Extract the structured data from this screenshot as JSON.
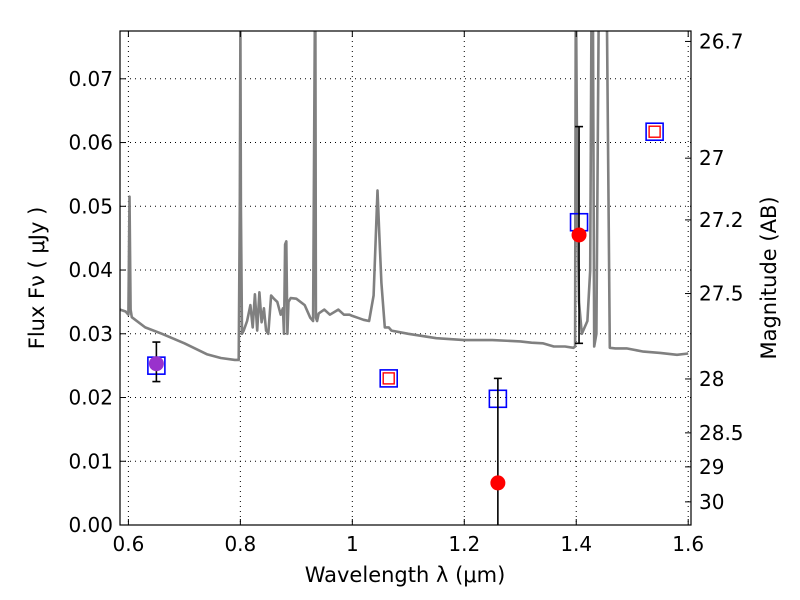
{
  "chart_data": {
    "type": "scatter",
    "title": "",
    "xlabel": "Wavelength  λ (μm)",
    "ylabel": "Flux  Fν  ( μJy )",
    "y2label": "Magnitude (AB)",
    "xlim": [
      0.585,
      1.605
    ],
    "ylim": [
      0.0,
      0.0775
    ],
    "grid": true,
    "x_ticks": [
      0.6,
      0.8,
      1.0,
      1.2,
      1.4,
      1.6
    ],
    "x_tick_labels": [
      "0.6",
      "0.8",
      "1",
      "1.2",
      "1.4",
      "1.6"
    ],
    "y_ticks": [
      0.0,
      0.01,
      0.02,
      0.03,
      0.04,
      0.05,
      0.06,
      0.07
    ],
    "y_tick_labels": [
      "0.00",
      "0.01",
      "0.02",
      "0.03",
      "0.04",
      "0.05",
      "0.06",
      "0.07"
    ],
    "mag_ticks": [
      {
        "mag": 26.7,
        "label": "26.7"
      },
      {
        "mag": 27.0,
        "label": "27"
      },
      {
        "mag": 27.2,
        "label": "27.2"
      },
      {
        "mag": 27.5,
        "label": "27.5"
      },
      {
        "mag": 28.0,
        "label": "28"
      },
      {
        "mag": 28.5,
        "label": "28.5"
      },
      {
        "mag": 29.0,
        "label": "29"
      },
      {
        "mag": 30.0,
        "label": "30"
      }
    ],
    "colors": {
      "spectrum": "#808080",
      "observed": "#ff0000",
      "model": "#0000ff",
      "errorbar": "#000000",
      "overlap": "#9932cc"
    },
    "series": [
      {
        "kind": "line",
        "x": [
          0.585,
          0.595,
          0.6,
          0.602,
          0.604,
          0.606,
          0.63,
          0.66,
          0.7,
          0.74,
          0.765,
          0.79,
          0.797,
          0.799,
          0.8,
          0.801,
          0.803,
          0.806,
          0.812,
          0.818,
          0.822,
          0.826,
          0.83,
          0.834,
          0.838,
          0.842,
          0.846,
          0.85,
          0.855,
          0.86,
          0.866,
          0.872,
          0.876,
          0.878,
          0.88,
          0.882,
          0.884,
          0.886,
          0.89,
          0.9,
          0.915,
          0.925,
          0.93,
          0.933,
          0.934,
          0.935,
          0.937,
          0.94,
          0.95,
          0.96,
          0.975,
          0.985,
          0.995,
          1.0,
          1.01,
          1.02,
          1.03,
          1.038,
          1.045,
          1.048,
          1.052,
          1.058,
          1.065,
          1.07,
          1.1,
          1.15,
          1.2,
          1.25,
          1.3,
          1.32,
          1.34,
          1.36,
          1.38,
          1.395,
          1.398,
          1.399,
          1.4,
          1.402,
          1.405,
          1.41,
          1.42,
          1.425,
          1.427,
          1.428,
          1.429,
          1.43,
          1.432,
          1.436,
          1.44,
          1.447,
          1.455,
          1.46,
          1.47,
          1.49,
          1.52,
          1.55,
          1.58,
          1.6
        ],
        "y": [
          0.0338,
          0.0335,
          0.033,
          0.0515,
          0.0338,
          0.0326,
          0.031,
          0.03,
          0.0285,
          0.0268,
          0.0262,
          0.0259,
          0.0259,
          0.05,
          0.078,
          0.05,
          0.03,
          0.0305,
          0.032,
          0.0345,
          0.031,
          0.0362,
          0.0305,
          0.0365,
          0.0318,
          0.034,
          0.0305,
          0.03,
          0.036,
          0.0355,
          0.035,
          0.033,
          0.034,
          0.03,
          0.044,
          0.0445,
          0.03,
          0.035,
          0.0356,
          0.0355,
          0.0345,
          0.0325,
          0.032,
          0.078,
          0.078,
          0.0325,
          0.032,
          0.0332,
          0.0338,
          0.033,
          0.0338,
          0.033,
          0.033,
          0.0328,
          0.0325,
          0.0322,
          0.032,
          0.036,
          0.0525,
          0.046,
          0.038,
          0.031,
          0.031,
          0.0305,
          0.03,
          0.0293,
          0.029,
          0.029,
          0.0288,
          0.0286,
          0.0285,
          0.028,
          0.028,
          0.0278,
          0.028,
          0.078,
          0.078,
          0.05,
          0.035,
          0.03,
          0.032,
          0.04,
          0.078,
          0.078,
          0.078,
          0.078,
          0.028,
          0.03,
          0.078,
          0.078,
          0.078,
          0.0278,
          0.0277,
          0.0277,
          0.0272,
          0.027,
          0.0267,
          0.0269
        ]
      },
      {
        "kind": "scatter",
        "marker": "square-open",
        "x": [
          0.65,
          1.065,
          1.26,
          1.405,
          1.54
        ],
        "y": [
          0.025,
          0.023,
          0.0198,
          0.0475,
          0.0617
        ]
      },
      {
        "kind": "scatter",
        "marker": "circle-filled",
        "x": [
          0.65,
          1.26,
          1.405
        ],
        "y": [
          0.0253,
          0.0066,
          0.0455
        ],
        "yerr_low": [
          0.0028,
          0.0066,
          0.017
        ],
        "yerr_high": [
          0.0034,
          0.0164,
          0.017
        ]
      },
      {
        "kind": "scatter",
        "marker": "square-open-small",
        "x": [
          1.065,
          1.54
        ],
        "y": [
          0.023,
          0.0617
        ]
      }
    ]
  }
}
